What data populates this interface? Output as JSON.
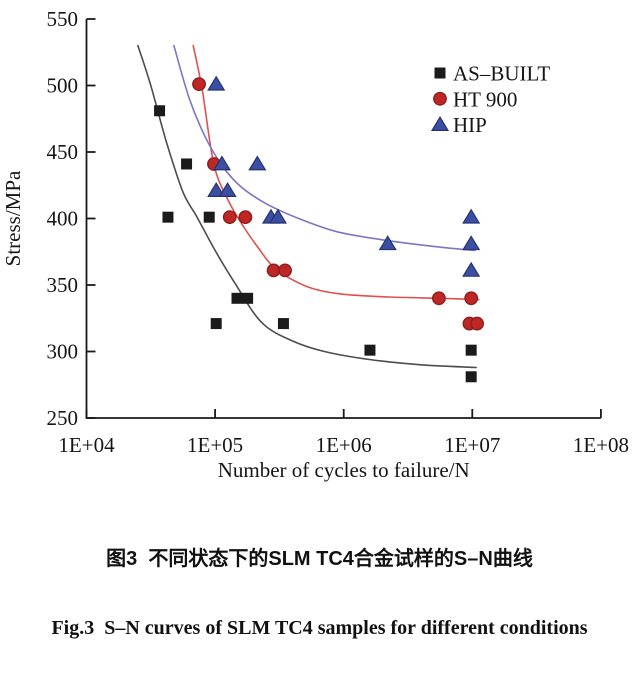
{
  "figure": {
    "caption_zh": "图3  不同状态下的SLM TC4合金试样的S–N曲线",
    "caption_en": "Fig.3  S–N curves of SLM TC4 samples for different conditions"
  },
  "chart_data": {
    "type": "scatter",
    "title": "",
    "xlabel": "Number of cycles to failure/N",
    "ylabel": "Stress/MPa",
    "x_scale": "log10",
    "xlim": [
      10000,
      100000000
    ],
    "ylim": [
      250,
      550
    ],
    "x_tick_labels": [
      "1E+04",
      "1E+05",
      "1E+06",
      "1E+07",
      "1E+08"
    ],
    "x_tick_values": [
      10000,
      100000,
      1000000,
      10000000,
      100000000
    ],
    "y_ticks": [
      250,
      300,
      350,
      400,
      450,
      500,
      550
    ],
    "grid": "off",
    "legend_position": "upper-right-inside",
    "axis_color": "#1a1a1a",
    "series": [
      {
        "name": "AS–BUILT",
        "marker": "square",
        "marker_color": "#1b1b1b",
        "marker_edge": "#1b1b1b",
        "curve_color": "#4d4d4d",
        "points": [
          [
            37000,
            481
          ],
          [
            43000,
            401
          ],
          [
            60000,
            441
          ],
          [
            90000,
            401
          ],
          [
            102000,
            321
          ],
          [
            148000,
            340
          ],
          [
            179000,
            340
          ],
          [
            340000,
            321
          ],
          [
            1600000,
            301
          ],
          [
            9800000,
            301
          ],
          [
            9800000,
            281
          ]
        ],
        "fit_curve_log10x_mpa": [
          [
            4.4,
            530
          ],
          [
            4.5,
            500
          ],
          [
            4.62,
            458
          ],
          [
            4.75,
            420
          ],
          [
            4.86,
            401
          ],
          [
            5.0,
            376
          ],
          [
            5.15,
            352
          ],
          [
            5.36,
            322
          ],
          [
            5.6,
            308
          ],
          [
            5.85,
            300
          ],
          [
            6.2,
            294
          ],
          [
            6.6,
            290
          ],
          [
            7.03,
            288
          ]
        ]
      },
      {
        "name": "HT 900",
        "marker": "circle",
        "marker_color": "#bf2626",
        "marker_edge": "#8e1d1d",
        "curve_color": "#e05050",
        "points": [
          [
            75000,
            501
          ],
          [
            98000,
            441
          ],
          [
            130000,
            401
          ],
          [
            172000,
            401
          ],
          [
            285000,
            361
          ],
          [
            350000,
            361
          ],
          [
            5500000,
            340
          ],
          [
            9800000,
            340
          ],
          [
            9500000,
            321
          ],
          [
            10900000,
            321
          ]
        ],
        "fit_curve_log10x_mpa": [
          [
            4.83,
            530
          ],
          [
            4.9,
            497
          ],
          [
            4.99,
            441
          ],
          [
            5.1,
            414
          ],
          [
            5.22,
            394
          ],
          [
            5.35,
            376
          ],
          [
            5.45,
            364
          ],
          [
            5.6,
            354
          ],
          [
            5.77,
            347
          ],
          [
            6.0,
            343
          ],
          [
            6.35,
            341
          ],
          [
            6.74,
            340
          ],
          [
            7.05,
            339
          ]
        ]
      },
      {
        "name": "HIP",
        "marker": "triangle",
        "marker_color": "#3c4ea2",
        "marker_edge": "#27336f",
        "curve_color": "#7c76c6",
        "points": [
          [
            102000,
            501
          ],
          [
            113000,
            441
          ],
          [
            213000,
            441
          ],
          [
            102000,
            421
          ],
          [
            125000,
            421
          ],
          [
            272000,
            401
          ],
          [
            308000,
            401
          ],
          [
            2200000,
            381
          ],
          [
            9800000,
            401
          ],
          [
            9800000,
            381
          ],
          [
            9800000,
            361
          ]
        ],
        "fit_curve_log10x_mpa": [
          [
            4.68,
            530
          ],
          [
            4.8,
            490
          ],
          [
            4.93,
            460
          ],
          [
            5.06,
            439
          ],
          [
            5.2,
            424
          ],
          [
            5.4,
            411
          ],
          [
            5.65,
            400
          ],
          [
            5.95,
            390
          ],
          [
            6.3,
            384
          ],
          [
            6.7,
            379
          ],
          [
            7.02,
            376
          ]
        ]
      }
    ]
  }
}
